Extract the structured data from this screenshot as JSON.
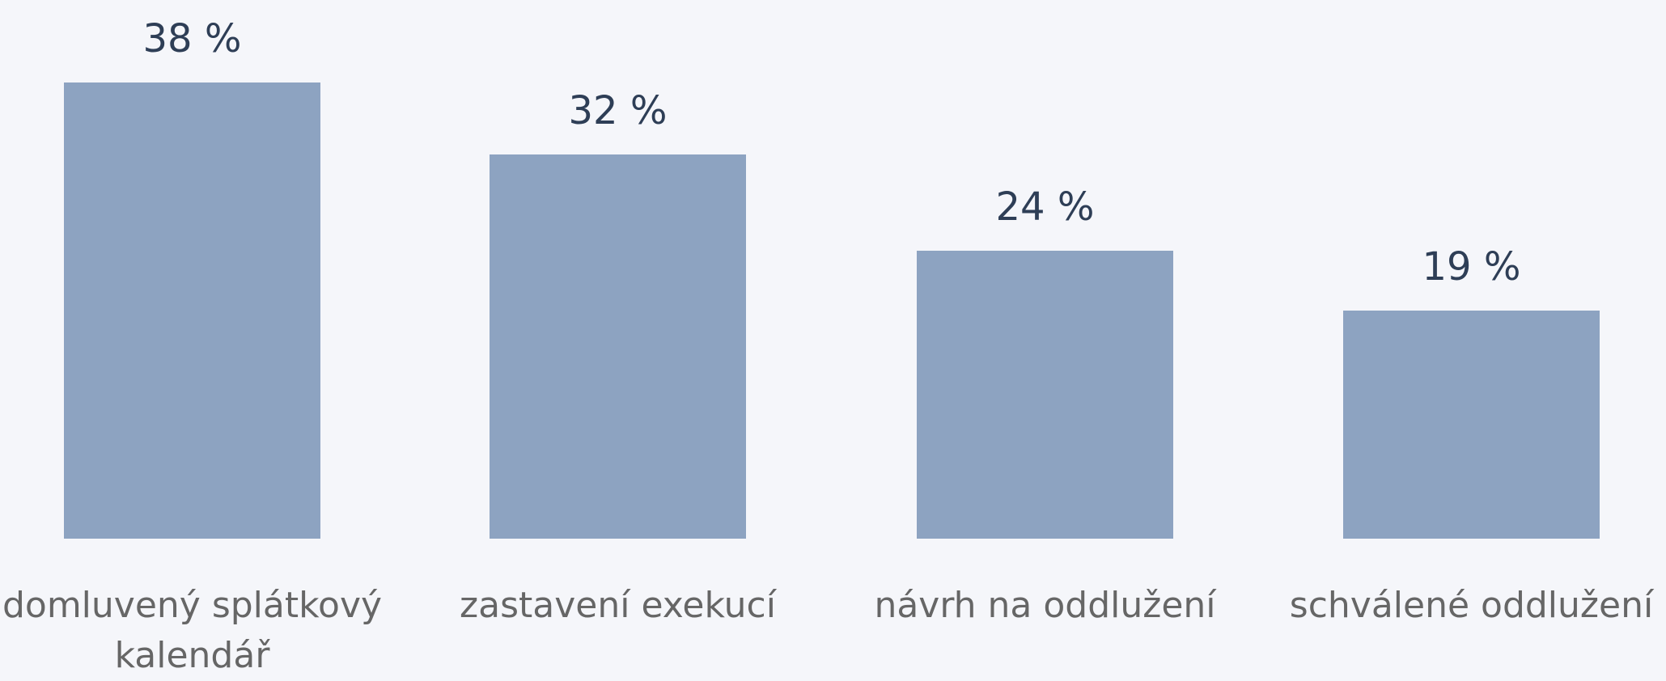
{
  "chart_data": {
    "type": "bar",
    "categories": [
      "domluvený splátkový kalendář",
      "zastavení exekucí",
      "návrh na oddlužení",
      "schválené oddlužení"
    ],
    "values": [
      38,
      32,
      24,
      19
    ],
    "value_labels": [
      "38 %",
      "32 %",
      "24 %",
      "19 %"
    ],
    "color": "#8da3c1"
  }
}
